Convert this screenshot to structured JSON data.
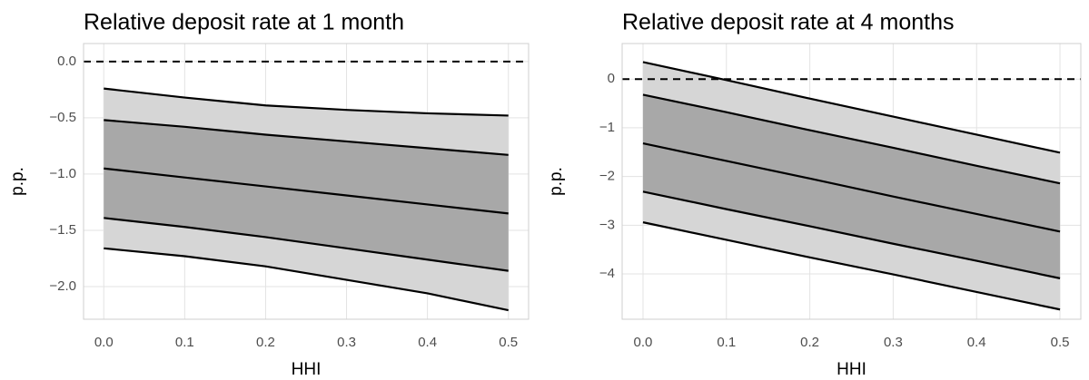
{
  "chart_data": [
    {
      "type": "fan",
      "title": "Relative deposit rate at 1 month",
      "x_label": "HHI",
      "y_label": "p.p.",
      "x": [
        0,
        0.1,
        0.2,
        0.3,
        0.4,
        0.5
      ],
      "series": [
        {
          "color": "#000000",
          "values": [
            -0.24,
            -0.32,
            -0.39,
            -0.43,
            -0.46,
            -0.48
          ]
        },
        {
          "color": "#000000",
          "values": [
            -0.52,
            -0.58,
            -0.65,
            -0.71,
            -0.77,
            -0.83
          ]
        },
        {
          "color": "#000000",
          "values": [
            -0.95,
            -1.03,
            -1.11,
            -1.19,
            -1.27,
            -1.35
          ]
        },
        {
          "color": "#000000",
          "values": [
            -1.39,
            -1.47,
            -1.56,
            -1.66,
            -1.76,
            -1.86
          ]
        },
        {
          "color": "#000000",
          "values": [
            -1.66,
            -1.73,
            -1.82,
            -1.94,
            -2.06,
            -2.21
          ]
        }
      ],
      "band_colors": [
        "#d6d6d6",
        "#a8a8a8"
      ],
      "hline": 0,
      "xlim": [
        -0.025,
        0.525
      ],
      "ylim": [
        -2.29,
        0.16
      ],
      "xticks": [
        {
          "value": 0,
          "label": "0.0"
        },
        0.1,
        0.2,
        0.3,
        0.4,
        0.5
      ],
      "yticks": [
        {
          "value": 0,
          "label": "0.0"
        },
        {
          "value": -0.5,
          "label": "−0.5"
        },
        {
          "value": -1,
          "label": "−1.0"
        },
        {
          "value": -1.5,
          "label": "−1.5"
        },
        {
          "value": -2,
          "label": "−2.0"
        }
      ],
      "grid": true
    },
    {
      "type": "fan",
      "title": "Relative deposit rate at 4 months",
      "x_label": "HHI",
      "y_label": "p.p.",
      "x": [
        0,
        0.1,
        0.2,
        0.3,
        0.4,
        0.5
      ],
      "series": [
        {
          "color": "#000000",
          "values": [
            0.35,
            -0.02,
            -0.4,
            -0.77,
            -1.14,
            -1.51
          ]
        },
        {
          "color": "#000000",
          "values": [
            -0.32,
            -0.68,
            -1.05,
            -1.41,
            -1.78,
            -2.14
          ]
        },
        {
          "color": "#000000",
          "values": [
            -1.32,
            -1.68,
            -2.04,
            -2.41,
            -2.77,
            -3.13
          ]
        },
        {
          "color": "#000000",
          "values": [
            -2.31,
            -2.67,
            -3.02,
            -3.38,
            -3.73,
            -4.09
          ]
        },
        {
          "color": "#000000",
          "values": [
            -2.94,
            -3.3,
            -3.66,
            -4.01,
            -4.37,
            -4.73
          ]
        }
      ],
      "band_colors": [
        "#d6d6d6",
        "#a8a8a8"
      ],
      "hline": 0,
      "xlim": [
        -0.025,
        0.525
      ],
      "ylim": [
        -4.93,
        0.73
      ],
      "xticks": [
        {
          "value": 0,
          "label": "0.0"
        },
        0.1,
        0.2,
        0.3,
        0.4,
        0.5
      ],
      "yticks": [
        0,
        {
          "value": -1,
          "label": "−1"
        },
        {
          "value": -2,
          "label": "−2"
        },
        {
          "value": -3,
          "label": "−3"
        },
        {
          "value": -4,
          "label": "−4"
        }
      ],
      "grid": true
    }
  ]
}
